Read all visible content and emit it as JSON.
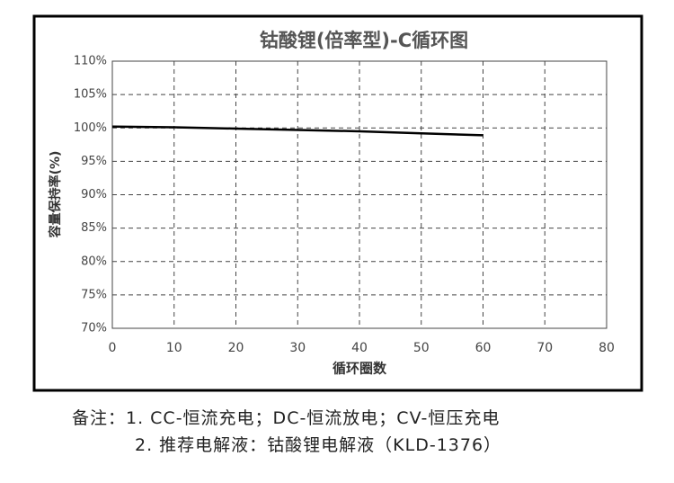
{
  "chart_data": {
    "type": "line",
    "title": "钴酸锂(倍率型)-C循环图",
    "x_label": "循环圈数",
    "y_label": "容量保持率(%)",
    "x": [
      0,
      10,
      20,
      30,
      40,
      50,
      60
    ],
    "series": [
      {
        "name": "钴酸锂(倍率型)",
        "color": "#000000",
        "values": [
          100.2,
          100.1,
          99.9,
          99.7,
          99.5,
          99.2,
          98.9
        ]
      }
    ],
    "xlim": [
      0,
      80
    ],
    "xticks": [
      0,
      10,
      20,
      30,
      40,
      50,
      60,
      70,
      80
    ],
    "ylim": [
      70,
      110
    ],
    "yticks": [
      {
        "value": 70,
        "label": "70%"
      },
      {
        "value": 75,
        "label": "75%"
      },
      {
        "value": 80,
        "label": "80%"
      },
      {
        "value": 85,
        "label": "85%"
      },
      {
        "value": 90,
        "label": "90%"
      },
      {
        "value": 95,
        "label": "95%"
      },
      {
        "value": 100,
        "label": "100%"
      },
      {
        "value": 105,
        "label": "105%"
      },
      {
        "value": 110,
        "label": "110%"
      }
    ],
    "grid": true
  },
  "notes": [
    "备注：1. CC-恒流充电；DC-恒流放电；CV-恒压充电",
    "2. 推荐电解液：钴酸锂电解液（KLD-1376）"
  ]
}
